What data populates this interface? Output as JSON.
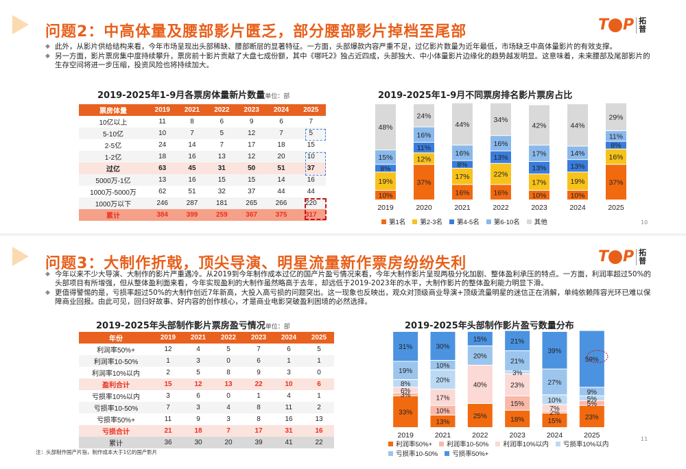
{
  "slide1": {
    "title": "问题2：中高体量及腰部影片匮乏，部分腰部影片掉档至尾部",
    "logo_text": "TOP",
    "logo_cn": "拓普",
    "bullets": [
      "此外，从影片供给结构来看，今年市场呈现出头部稀缺、腰部断层的显著特征。一方面，头部爆款内容严重不足，过亿影片数量为近年最低，市场缺乏中高体量影片的有效支撑。",
      "另一方面，影片票房集中度持续攀升，票房前十影片贡献了大盘七成份额，其中《哪吒2》独占近四成，头部独大、中小体量影片边缘化的趋势越发明显。这意味着，未来腰部及尾部影片的生存空间将进一步压缩，投资风险也将持续加大。"
    ],
    "table_title": "2019-2025年1-9月各票房体量新片数量",
    "table_unit": "单位：部",
    "table": {
      "header": [
        "票房体量",
        "2019",
        "2021",
        "2022",
        "2023",
        "2024",
        "2025"
      ],
      "rows": [
        [
          "10亿以上",
          "11",
          "8",
          "6",
          "9",
          "6",
          "7"
        ],
        [
          "5-10亿",
          "10",
          "7",
          "5",
          "12",
          "7",
          "5"
        ],
        [
          "2-5亿",
          "24",
          "14",
          "7",
          "17",
          "18",
          "15"
        ],
        [
          "1-2亿",
          "18",
          "16",
          "13",
          "12",
          "20",
          "10"
        ],
        [
          "过亿",
          "63",
          "45",
          "31",
          "50",
          "51",
          "37"
        ],
        [
          "5000万-1亿",
          "13",
          "16",
          "15",
          "15",
          "14",
          "16"
        ],
        [
          "1000万-5000万",
          "62",
          "51",
          "32",
          "37",
          "44",
          "44"
        ],
        [
          "1000万以下",
          "246",
          "287",
          "181",
          "265",
          "266",
          "220"
        ],
        [
          "累计",
          "384",
          "399",
          "259",
          "367",
          "375",
          "317"
        ]
      ]
    },
    "chart_title": "2019-2025年1-9月不同票房排名影片票房占比",
    "page_number": "10"
  },
  "slide2": {
    "title": "问题3：大制作折戟，顶尖导演、明星流量新作票房纷纷失利",
    "logo_text": "TOP",
    "logo_cn": "拓普",
    "bullets": [
      "今年以来不少大导演、大制作的影片严重遇冷。从2019到今年制作成本过亿的国产片盈亏情况来看，今年大制作影片呈现两极分化加剧、整体盈利承压的特点。一方面，利润率超过50%的头部项目有所增强，但从整体盈利面来看，今年实现盈利的大制作虽然略高于去年，却远低于2019-2023年的水平，大制作影片的整体盈利能力明显下滑。",
      "更值得警惕的是，亏损率超过50%的大制作创近7年新高，大投入高亏损的问题突出。这一现象也反映出，观众对顶级商业导演+顶级流量明星的迷信正在消解，单纯依赖阵容光环已难以保障商业回报。由此可见，回归好故事、好内容的创作核心，才是商业电影突破盈利困境的必然选择。"
    ],
    "table_title": "2019-2025年头部制作影片票房盈亏情况",
    "table_unit": "单位：部",
    "table": {
      "header": [
        "年份",
        "2019",
        "2021",
        "2022",
        "2023",
        "2024",
        "2025"
      ],
      "rows": [
        [
          "利润率50%+",
          "12",
          "4",
          "5",
          "7",
          "6",
          "5"
        ],
        [
          "利润率10-50%",
          "1",
          "3",
          "0",
          "6",
          "1",
          "1"
        ],
        [
          "利润率10%以内",
          "2",
          "5",
          "8",
          "9",
          "3",
          "0"
        ],
        [
          "盈利合计",
          "15",
          "12",
          "13",
          "22",
          "10",
          "6"
        ],
        [
          "亏损率10%以内",
          "3",
          "6",
          "0",
          "1",
          "4",
          "1"
        ],
        [
          "亏损率10-50%",
          "7",
          "3",
          "4",
          "8",
          "11",
          "2"
        ],
        [
          "亏损率50%+",
          "11",
          "9",
          "3",
          "8",
          "16",
          "13"
        ],
        [
          "亏损合计",
          "21",
          "18",
          "7",
          "17",
          "31",
          "16"
        ],
        [
          "累计",
          "36",
          "30",
          "20",
          "39",
          "41",
          "22"
        ]
      ]
    },
    "chart_title": "2019-2025年头部制作影片盈亏数量分布",
    "note": "注：头部制作国产片指，制作成本大于1亿的国产影片",
    "page_number": "11"
  },
  "chart_data": [
    {
      "type": "bar",
      "stacked": true,
      "title": "2019-2025年1-9月不同票房排名影片票房占比",
      "categories": [
        "2019",
        "2020",
        "2021",
        "2022",
        "2023",
        "2024",
        "2025"
      ],
      "series": [
        {
          "name": "第1名",
          "color": "#f26a10",
          "values": [
            10,
            37,
            16,
            16,
            10,
            10,
            37
          ]
        },
        {
          "name": "第2-3名",
          "color": "#f7c21b",
          "values": [
            19,
            12,
            17,
            22,
            17,
            19,
            16
          ]
        },
        {
          "name": "第4-5名",
          "color": "#3a7ddb",
          "values": [
            8,
            11,
            8,
            13,
            13,
            13,
            8
          ]
        },
        {
          "name": "第6-10名",
          "color": "#8ab9ec",
          "values": [
            15,
            16,
            16,
            16,
            17,
            14,
            11
          ]
        },
        {
          "name": "其他",
          "color": "#d9d9d9",
          "values": [
            48,
            24,
            44,
            34,
            42,
            44,
            29
          ]
        }
      ],
      "ylim": [
        0,
        100
      ],
      "legend": "bottom"
    },
    {
      "type": "bar",
      "stacked": true,
      "title": "2019-2025年头部制作影片盈亏数量分布",
      "categories": [
        "2019",
        "2021",
        "2022",
        "2023",
        "2024",
        "2025"
      ],
      "series": [
        {
          "name": "利润率50%+",
          "color": "#f26a10",
          "values": [
            33,
            13,
            25,
            18,
            15,
            23
          ]
        },
        {
          "name": "利润率10-50%",
          "color": "#f9b8a8",
          "values": [
            3,
            10,
            0,
            15,
            2,
            5
          ]
        },
        {
          "name": "利润率10%以内",
          "color": "#fbd9d4",
          "values": [
            6,
            17,
            40,
            23,
            7,
            0
          ]
        },
        {
          "name": "亏损率10%以内",
          "color": "#bcd9f3",
          "values": [
            8,
            20,
            0,
            3,
            10,
            5
          ]
        },
        {
          "name": "亏损率10-50%",
          "color": "#9cc5ee",
          "values": [
            19,
            10,
            20,
            21,
            27,
            9
          ]
        },
        {
          "name": "亏损率50%+",
          "color": "#4b93e0",
          "values": [
            31,
            30,
            15,
            21,
            39,
            59
          ]
        }
      ],
      "ylim": [
        0,
        100
      ],
      "legend": "bottom"
    }
  ]
}
